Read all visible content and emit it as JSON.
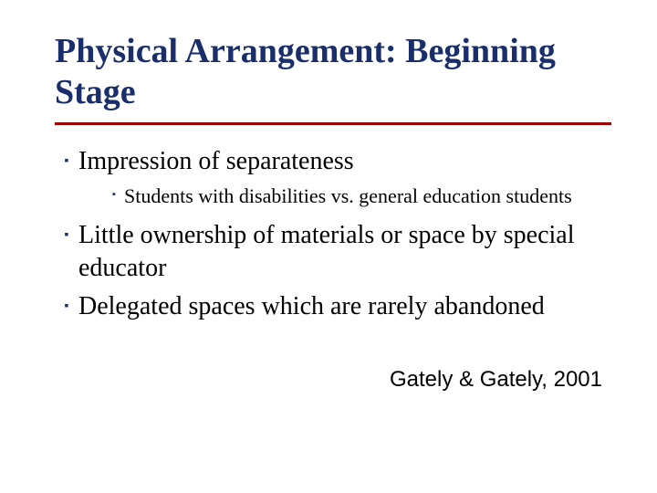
{
  "slide": {
    "title": "Physical Arrangement: Beginning Stage",
    "title_color": "#1a2e6b",
    "rule_color": "#a00000",
    "bullets": [
      {
        "text": "Impression of separateness",
        "sub": [
          {
            "text": "Students with disabilities vs. general education students"
          }
        ]
      },
      {
        "text": "Little ownership of materials or space by special educator",
        "sub": []
      },
      {
        "text": "Delegated spaces which are rarely abandoned",
        "sub": []
      }
    ],
    "citation": "Gately & Gately, 2001",
    "bullet_marker": "▪",
    "bullet_marker_color": "#1a2e6b",
    "body_text_color": "#000000",
    "body_fontsize": 28,
    "sub_fontsize": 22,
    "title_fontsize": 38,
    "citation_fontsize": 24,
    "background_color": "#ffffff"
  }
}
